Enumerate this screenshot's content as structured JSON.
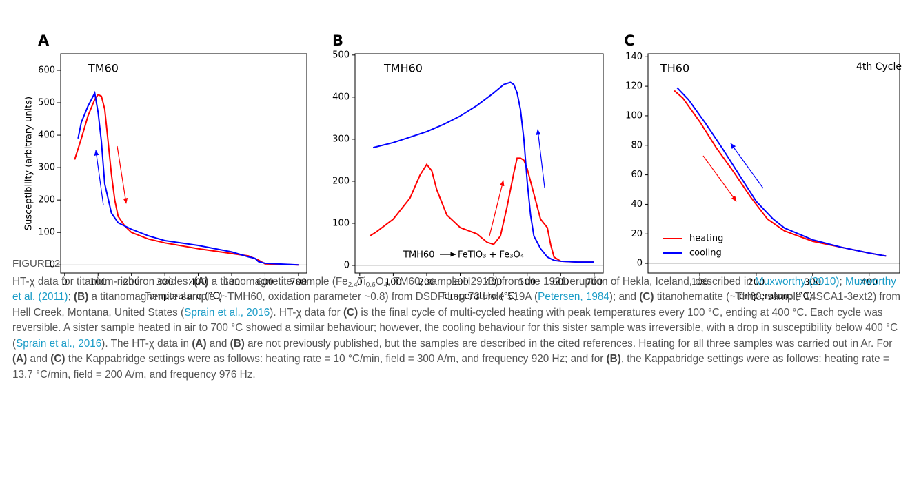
{
  "chart_data": [
    {
      "type": "line",
      "panel_label": "A",
      "annotations": [
        "TM60"
      ],
      "x_label": "Temperature (°C)",
      "y_label": "Susceptibility (arbitrary units)",
      "xlim": [
        -12,
        725
      ],
      "ylim": [
        -25,
        651
      ],
      "xticks": [
        0,
        100,
        200,
        300,
        400,
        500,
        600,
        700
      ],
      "yticks": [
        0,
        100,
        200,
        300,
        400,
        500,
        600
      ],
      "reference_line": 0,
      "series": [
        {
          "color": "#ff0000",
          "x": [
            30,
            50,
            70,
            90,
            100,
            110,
            120,
            130,
            140,
            150,
            160,
            180,
            200,
            250,
            300,
            400,
            500,
            550,
            580,
            600,
            700
          ],
          "values": [
            325,
            390,
            460,
            510,
            525,
            520,
            480,
            380,
            280,
            200,
            150,
            120,
            100,
            80,
            68,
            50,
            35,
            28,
            15,
            3,
            0
          ]
        },
        {
          "color": "#0000ff",
          "x": [
            700,
            600,
            580,
            570,
            550,
            500,
            400,
            300,
            250,
            200,
            160,
            140,
            120,
            110,
            100,
            90,
            80,
            70,
            50,
            40
          ],
          "values": [
            0,
            5,
            10,
            20,
            25,
            40,
            60,
            75,
            90,
            110,
            130,
            160,
            250,
            380,
            470,
            530,
            510,
            490,
            440,
            390
          ]
        }
      ]
    },
    {
      "type": "line",
      "panel_label": "B",
      "annotations": [
        "TMH60",
        "TMH60",
        "FeTiO₃ + Fe₃O₄"
      ],
      "x_label": "Temperature (°C)",
      "xlim": [
        -14,
        727
      ],
      "ylim": [
        -18,
        503
      ],
      "xticks": [
        0,
        100,
        200,
        300,
        400,
        500,
        600,
        700
      ],
      "yticks": [
        0,
        100,
        200,
        300,
        400,
        500
      ],
      "reference_line": 0,
      "series": [
        {
          "color": "#ff0000",
          "x": [
            30,
            50,
            100,
            150,
            180,
            200,
            215,
            230,
            260,
            300,
            350,
            380,
            400,
            420,
            440,
            460,
            470,
            480,
            490,
            500,
            520,
            540,
            550,
            560,
            570,
            580,
            600,
            650,
            700
          ],
          "values": [
            70,
            80,
            110,
            160,
            215,
            240,
            225,
            180,
            120,
            90,
            75,
            55,
            50,
            70,
            140,
            220,
            255,
            255,
            250,
            230,
            170,
            110,
            100,
            90,
            50,
            20,
            10,
            8,
            8
          ]
        },
        {
          "color": "#0000ff",
          "x": [
            40,
            100,
            150,
            200,
            250,
            300,
            350,
            400,
            430,
            450,
            460,
            470,
            480,
            490,
            500,
            510,
            520,
            540,
            560,
            580,
            600,
            650,
            700
          ],
          "values": [
            280,
            292,
            305,
            318,
            335,
            355,
            380,
            410,
            430,
            435,
            430,
            410,
            370,
            300,
            200,
            120,
            70,
            40,
            20,
            12,
            10,
            8,
            8
          ]
        }
      ]
    },
    {
      "type": "line",
      "panel_label": "C",
      "annotations": [
        "TH60",
        "4th Cycle"
      ],
      "x_label": "Temperature (°C)",
      "xlim": [
        8.5,
        454
      ],
      "ylim": [
        -6.5,
        142
      ],
      "xticks": [
        100,
        200,
        300,
        400
      ],
      "yticks": [
        0,
        20,
        40,
        60,
        80,
        100,
        120,
        140
      ],
      "reference_line": 0,
      "legend": "lower left",
      "series": [
        {
          "name": "heating",
          "color": "#ff0000",
          "x": [
            55,
            70,
            100,
            130,
            160,
            190,
            220,
            250,
            300,
            350,
            400,
            430
          ],
          "values": [
            117,
            112,
            96,
            78,
            62,
            45,
            30,
            22,
            15,
            11,
            7,
            5
          ]
        },
        {
          "name": "cooling",
          "color": "#0000ff",
          "x": [
            430,
            400,
            350,
            300,
            250,
            230,
            200,
            170,
            140,
            110,
            80,
            60
          ],
          "values": [
            5,
            7,
            11,
            16,
            24,
            30,
            42,
            60,
            78,
            95,
            111,
            119
          ]
        }
      ]
    }
  ],
  "caption": {
    "label": "FIGURE 2",
    "segments": [
      {
        "text": "HT-χ data for titanium-rich iron oxides: "
      },
      {
        "text": "(A)",
        "style": "bold"
      },
      {
        "text": " a titanomagnetite sample (Fe"
      },
      {
        "text": "2.4",
        "style": "sub"
      },
      {
        "text": "Ti"
      },
      {
        "text": "0.6",
        "style": "sub"
      },
      {
        "text": "O"
      },
      {
        "text": "4",
        "style": "sub"
      },
      {
        "text": ", TM60, sample H291B) from the 1991 eruption of Hekla, Iceland, described in "
      },
      {
        "text": "Muxworthy (2010)",
        "style": "link"
      },
      {
        "text": "; "
      },
      {
        "text": "Muxworthy et al. (2011)",
        "style": "link"
      },
      {
        "text": "; "
      },
      {
        "text": "(B)",
        "style": "bold"
      },
      {
        "text": " a titanomaghemite sample (~TMH60, oxidation parameter ~0.8) from DSDP Leg 73 Hole 519A ("
      },
      {
        "text": "Petersen, 1984",
        "style": "link"
      },
      {
        "text": "); and "
      },
      {
        "text": "(C)",
        "style": "bold"
      },
      {
        "text": " titanohematite (~TH60, sample 14SCA1-3ext2) from Hell Creek, Montana, United States ("
      },
      {
        "text": "Sprain et al., 2016",
        "style": "link"
      },
      {
        "text": "). HT-χ data for "
      },
      {
        "text": "(C)",
        "style": "bold"
      },
      {
        "text": " is the final cycle of multi-cycled heating with peak temperatures every 100 °C, ending at 400 °C. Each cycle was reversible. A sister sample heated in air to 700 °C showed a similar behaviour; however, the cooling behaviour for this sister sample was irreversible, with a drop in susceptibility below 400 °C ("
      },
      {
        "text": "Sprain et al., 2016",
        "style": "link"
      },
      {
        "text": "). The HT-χ data in "
      },
      {
        "text": "(A)",
        "style": "bold"
      },
      {
        "text": " and "
      },
      {
        "text": "(B)",
        "style": "bold"
      },
      {
        "text": " are not previously published, but the samples are described in the cited references. Heating for all three samples was carried out in Ar. For "
      },
      {
        "text": "(A)",
        "style": "bold"
      },
      {
        "text": " and "
      },
      {
        "text": "(C)",
        "style": "bold"
      },
      {
        "text": " the Kappabridge settings were as follows: heating rate = 10 °C/min, field = 300 A/m, and frequency 920 Hz; and for "
      },
      {
        "text": "(B)",
        "style": "bold"
      },
      {
        "text": ", the Kappabridge settings were as follows: heating rate = 13.7 °C/min, field = 200 A/m, and frequency 976 Hz."
      }
    ]
  }
}
